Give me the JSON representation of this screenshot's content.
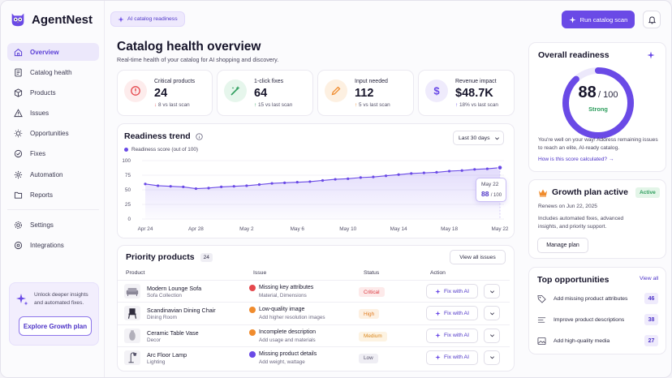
{
  "brand": {
    "name": "AgentNest",
    "logo_icon": "owl-logo-icon"
  },
  "sidebar": {
    "items": [
      {
        "label": "Overview",
        "icon": "home-icon",
        "active": true
      },
      {
        "label": "Catalog health",
        "icon": "document-icon"
      },
      {
        "label": "Products",
        "icon": "box-icon"
      },
      {
        "label": "Issues",
        "icon": "warning-icon"
      },
      {
        "label": "Opportunities",
        "icon": "lightbulb-icon"
      },
      {
        "label": "Fixes",
        "icon": "wrench-icon"
      },
      {
        "label": "Automation",
        "icon": "gear-icon"
      },
      {
        "label": "Reports",
        "icon": "folder-icon"
      },
      {
        "label": "Settings",
        "icon": "settings-icon"
      },
      {
        "label": "Integrations",
        "icon": "integrations-icon"
      }
    ],
    "promo": {
      "text": "Unlock deeper insights and automated fixes.",
      "button": "Explore Growth plan"
    }
  },
  "topbar": {
    "pill_label": "AI catalog readiness",
    "run_button": "Run catalog scan"
  },
  "header": {
    "title": "Catalog health overview",
    "subtitle": "Real-time health of your catalog for AI shopping and discovery."
  },
  "kpis": [
    {
      "label": "Critical products",
      "value": "24",
      "delta": "8",
      "delta_suffix": "vs last scan",
      "direction": "down",
      "color": "#e5484d",
      "bg": "#fdecec",
      "icon": "alert-icon"
    },
    {
      "label": "1-click fixes",
      "value": "64",
      "delta": "15",
      "delta_suffix": "vs last scan",
      "direction": "up",
      "color": "#2f9e5e",
      "bg": "#e6f6ec",
      "icon": "magic-wand-icon"
    },
    {
      "label": "Input needed",
      "value": "112",
      "delta": "5",
      "delta_suffix": "vs last scan",
      "direction": "up",
      "color": "#f08c2e",
      "bg": "#fdf0e1",
      "icon": "pencil-icon"
    },
    {
      "label": "Revenue impact",
      "value": "$48.7K",
      "delta": "18%",
      "delta_suffix": "vs last scan",
      "direction": "up",
      "color": "#6a4ae6",
      "bg": "#efebfc",
      "icon": "dollar-icon"
    }
  ],
  "trend": {
    "title": "Readiness trend",
    "range_label": "Last 30 days",
    "legend": "Readiness score (out of 100)",
    "tooltip": {
      "date": "May 22",
      "value": "88",
      "suffix": "/ 100"
    }
  },
  "chart_data": {
    "type": "line",
    "x": [
      "Apr 24",
      "Apr 25",
      "Apr 26",
      "Apr 27",
      "Apr 28",
      "Apr 29",
      "Apr 30",
      "May 1",
      "May 2",
      "May 3",
      "May 4",
      "May 5",
      "May 6",
      "May 7",
      "May 8",
      "May 9",
      "May 10",
      "May 11",
      "May 12",
      "May 13",
      "May 14",
      "May 15",
      "May 16",
      "May 17",
      "May 18",
      "May 19",
      "May 20",
      "May 21",
      "May 22"
    ],
    "x_ticks": [
      "Apr 24",
      "Apr 28",
      "May 2",
      "May 6",
      "May 10",
      "May 14",
      "May 18",
      "May 22"
    ],
    "series": [
      {
        "name": "Readiness score (out of 100)",
        "values": [
          60,
          57,
          56,
          55,
          52,
          53,
          55,
          56,
          57,
          59,
          61,
          62,
          63,
          64,
          66,
          68,
          69,
          71,
          72,
          74,
          76,
          78,
          79,
          80,
          82,
          83,
          85,
          86,
          88
        ]
      }
    ],
    "ylim": [
      0,
      100
    ],
    "yticks": [
      0,
      25,
      50,
      75,
      100
    ],
    "highlight_index": 28,
    "color": "#6a4ae6"
  },
  "priority": {
    "title": "Priority products",
    "count": "24",
    "view_all": "View all issues",
    "columns": [
      "Product",
      "Issue",
      "Status",
      "Action"
    ],
    "rows": [
      {
        "name": "Modern Lounge Sofa",
        "sub": "Sofa Collection",
        "thumb": "sofa-icon",
        "issue": "Missing key attributes",
        "issue_sub": "Material, Dimensions",
        "issue_color": "#e5484d",
        "status": "Critical",
        "status_color": "#d9383f",
        "status_bg": "#fdeaea",
        "action": "Fix with AI"
      },
      {
        "name": "Scandinavian Dining Chair",
        "sub": "Dining Room",
        "thumb": "chair-icon",
        "issue": "Low-quality image",
        "issue_sub": "Add higher resolution images",
        "issue_color": "#f08c2e",
        "status": "High",
        "status_color": "#e07a1f",
        "status_bg": "#fdf0e1",
        "action": "Fix with AI"
      },
      {
        "name": "Ceramic Table Vase",
        "sub": "Decor",
        "thumb": "vase-icon",
        "issue": "Incomplete description",
        "issue_sub": "Add usage and materials",
        "issue_color": "#f08c2e",
        "status": "Medium",
        "status_color": "#d9861c",
        "status_bg": "#fdf3e2",
        "action": "Fix with AI"
      },
      {
        "name": "Arc Floor Lamp",
        "sub": "Lighting",
        "thumb": "lamp-icon",
        "issue": "Missing product details",
        "issue_sub": "Add weight, wattage",
        "issue_color": "#6a4ae6",
        "status": "Low",
        "status_color": "#55526a",
        "status_bg": "#efeef4",
        "action": "Fix with AI"
      }
    ]
  },
  "readiness": {
    "title": "Overall readiness",
    "score": "88",
    "score_suffix": "/ 100",
    "score_value": 88,
    "label": "Strong",
    "text": "You're well on your way! Address remaining issues to reach an elite, AI-ready catalog.",
    "link": "How is this score calculated? →"
  },
  "plan": {
    "title": "Growth plan active",
    "badge": "Active",
    "renews": "Renews on Jun 22, 2025",
    "text": "Includes automated fixes, advanced insights, and priority support.",
    "button": "Manage plan"
  },
  "opportunities": {
    "title": "Top opportunities",
    "view_all": "View all",
    "items": [
      {
        "label": "Add missing product attributes",
        "count": "46",
        "icon": "tag-icon"
      },
      {
        "label": "Improve product descriptions",
        "count": "38",
        "icon": "text-lines-icon"
      },
      {
        "label": "Add high-quality media",
        "count": "27",
        "icon": "image-icon"
      }
    ]
  }
}
